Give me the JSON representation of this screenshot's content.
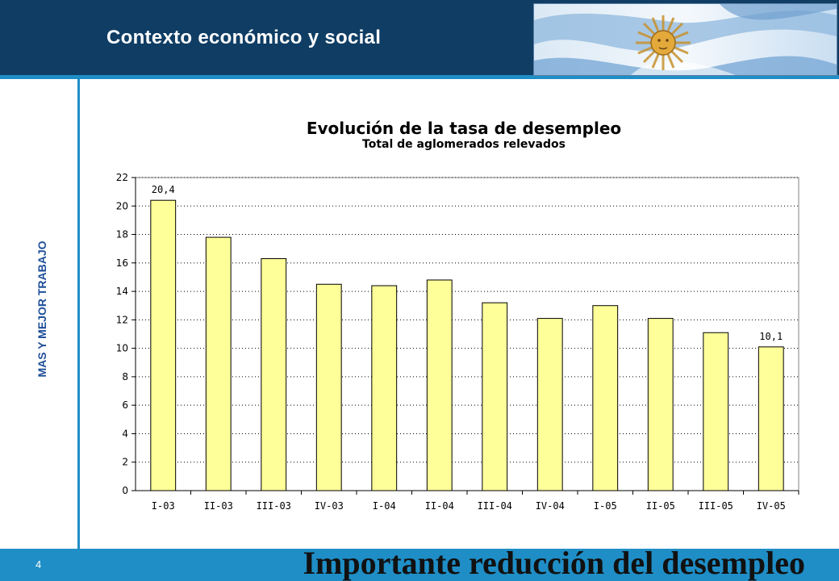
{
  "header": {
    "title": "Contexto económico y social"
  },
  "sidebar": {
    "label": "MAS Y MEJOR TRABAJO"
  },
  "footer": {
    "page_number": "4",
    "headline": "Importante reducción del desempleo"
  },
  "colors": {
    "header": "#0f3d64",
    "accent": "#1f8ec6",
    "bar_fill": "#ffff99",
    "plot_bg": "#ffffff"
  },
  "icons": {
    "flag": "argentina-flag-sun-icon"
  },
  "chart_data": {
    "type": "bar",
    "title": "Evolución de la tasa de desempleo",
    "subtitle": "Total de aglomerados relevados",
    "categories": [
      "I-03",
      "II-03",
      "III-03",
      "IV-03",
      "I-04",
      "II-04",
      "III-04",
      "IV-04",
      "I-05",
      "II-05",
      "III-05",
      "IV-05"
    ],
    "values": [
      20.4,
      17.8,
      16.3,
      14.5,
      14.4,
      14.8,
      13.2,
      12.1,
      13.0,
      12.1,
      11.1,
      10.1
    ],
    "data_labels": [
      {
        "index": 0,
        "text": "20,4"
      },
      {
        "index": 11,
        "text": "10,1"
      }
    ],
    "ylim": [
      0,
      22
    ],
    "yticks": [
      0,
      2,
      4,
      6,
      8,
      10,
      12,
      14,
      16,
      18,
      20,
      22
    ],
    "grid": true,
    "legend": "none"
  }
}
